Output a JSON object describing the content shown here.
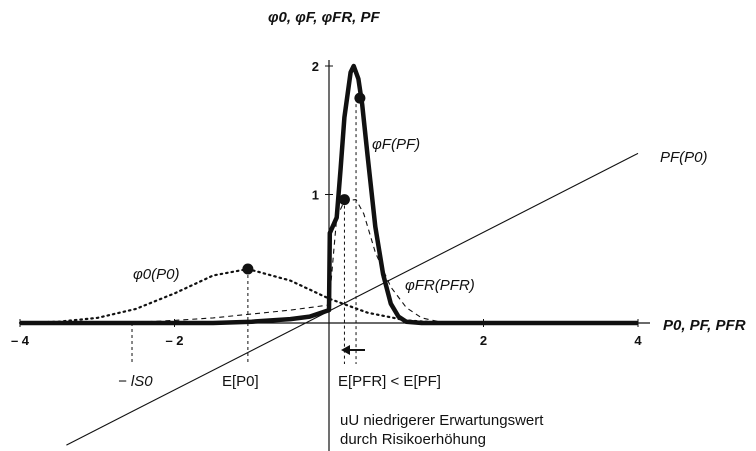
{
  "labels": {
    "y_axis_title": "φ0, φF, φFR, PF",
    "x_axis_title": "P0, PF, PFR",
    "line_label": "PF(P0)",
    "phiF_label": "φF(PF)",
    "phi0_label": "φ0(P0)",
    "phiFR_label": "φFR(PFR)",
    "lS0_label": "− lS0",
    "EP0_label": "E[P0]",
    "comparison_label": "E[PFR] < E[PF]",
    "note_line1": "uU niedrigerer Erwartungswert",
    "note_line2": "durch Risikoerhöhung"
  },
  "chart_data": {
    "type": "line",
    "xlim": [
      -4,
      4
    ],
    "ylim": [
      0,
      2
    ],
    "x_ticks": [
      -4,
      -2,
      2,
      4
    ],
    "x_tick_labels": [
      "– 4",
      "– 2",
      "2",
      "4"
    ],
    "y_ticks": [
      1,
      2
    ],
    "y_tick_labels": [
      "1",
      "2"
    ],
    "markers": {
      "lS0": -2.55,
      "E_P0": -1.05,
      "E_PF": 0.35,
      "E_PFR": 0.2
    },
    "series": [
      {
        "name": "φ0(P0)",
        "style": "dotted",
        "points": [
          [
            -4.0,
            0.0
          ],
          [
            -3.5,
            0.01
          ],
          [
            -3.0,
            0.04
          ],
          [
            -2.5,
            0.11
          ],
          [
            -2.0,
            0.23
          ],
          [
            -1.5,
            0.37
          ],
          [
            -1.05,
            0.42
          ],
          [
            -0.5,
            0.33
          ],
          [
            0.0,
            0.19
          ],
          [
            0.5,
            0.08
          ],
          [
            1.0,
            0.02
          ],
          [
            1.5,
            0.0
          ]
        ]
      },
      {
        "name": "φF(PF)",
        "style": "solid-thick",
        "points": [
          [
            -4.0,
            0.0
          ],
          [
            -1.5,
            0.0
          ],
          [
            -1.0,
            0.01
          ],
          [
            -0.5,
            0.03
          ],
          [
            -0.25,
            0.05
          ],
          [
            0.0,
            0.1
          ],
          [
            0.01,
            0.7
          ],
          [
            0.1,
            0.82
          ],
          [
            0.15,
            1.2
          ],
          [
            0.2,
            1.6
          ],
          [
            0.28,
            1.95
          ],
          [
            0.32,
            2.0
          ],
          [
            0.38,
            1.9
          ],
          [
            0.43,
            1.7
          ],
          [
            0.5,
            1.3
          ],
          [
            0.6,
            0.75
          ],
          [
            0.7,
            0.38
          ],
          [
            0.8,
            0.15
          ],
          [
            0.9,
            0.05
          ],
          [
            1.0,
            0.01
          ],
          [
            1.2,
            0.0
          ],
          [
            4.0,
            0.0
          ]
        ]
      },
      {
        "name": "φFR(PFR)",
        "style": "dashed",
        "points": [
          [
            -2.7,
            0.0
          ],
          [
            -2.0,
            0.02
          ],
          [
            -1.5,
            0.04
          ],
          [
            -1.0,
            0.07
          ],
          [
            -0.5,
            0.1
          ],
          [
            0.0,
            0.14
          ],
          [
            0.1,
            0.82
          ],
          [
            0.2,
            0.95
          ],
          [
            0.35,
            0.96
          ],
          [
            0.45,
            0.85
          ],
          [
            0.6,
            0.55
          ],
          [
            0.8,
            0.28
          ],
          [
            1.0,
            0.12
          ],
          [
            1.2,
            0.04
          ],
          [
            1.5,
            0.0
          ]
        ]
      },
      {
        "name": "PF(P0)",
        "style": "solid-thin",
        "points": [
          [
            -3.4,
            -0.95
          ],
          [
            4.0,
            1.32
          ]
        ]
      }
    ],
    "points": [
      {
        "x": -1.05,
        "y": 0.42
      },
      {
        "x": 0.2,
        "y": 0.96
      },
      {
        "x": 0.4,
        "y": 1.75
      }
    ]
  }
}
